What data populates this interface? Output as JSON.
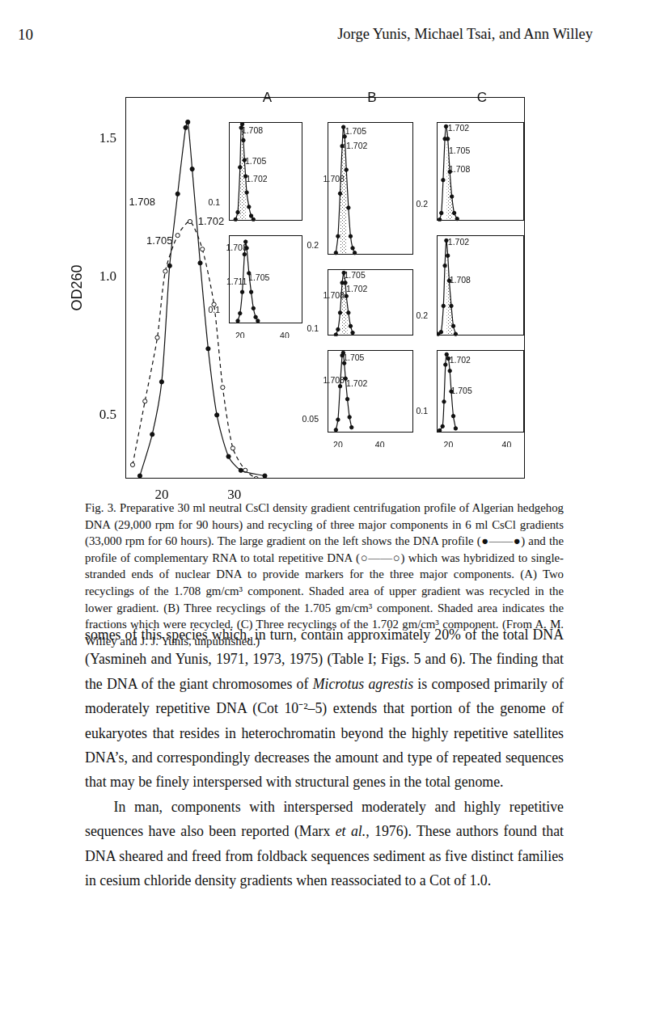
{
  "header": {
    "page": "10",
    "authors": "Jorge Yunis, Michael Tsai, and Ann Willey"
  },
  "chart_data": [
    {
      "type": "line",
      "y_label": "OD260",
      "grid": false,
      "xlim": [
        15,
        70
      ],
      "xticks": [
        20,
        30
      ],
      "ylim": [
        0.27,
        1.65
      ],
      "yticks": [
        0.5,
        {
          "value": 1.0,
          "label": "1.0"
        },
        1.5
      ],
      "series": [
        {
          "color": "#111111",
          "marker": "filled_circle",
          "line_style": "solid",
          "x": [
            17.0,
            18.7,
            20.0,
            21.1,
            22.2,
            23.3,
            23.6,
            24.2,
            25.3,
            26.4,
            27.6,
            29.2,
            30.9,
            34.2
          ],
          "values": [
            0.28,
            0.43,
            0.62,
            1.04,
            1.3,
            1.54,
            1.56,
            1.39,
            1.05,
            0.74,
            0.5,
            0.35,
            0.3,
            0.28
          ]
        },
        {
          "color": "#111111",
          "marker": "open_circle",
          "line_style": "dashed",
          "x": [
            16.0,
            17.7,
            19.4,
            20.5,
            22.2,
            23.9,
            25.6,
            27.2,
            28.4,
            29.8,
            31.5,
            33.0
          ],
          "values": [
            0.32,
            0.55,
            0.78,
            1.02,
            1.15,
            1.2,
            1.1,
            0.9,
            0.6,
            0.38,
            0.3,
            0.27
          ]
        }
      ],
      "annotations": [
        {
          "text": "1.708",
          "x": 17.3,
          "y": 1.27
        },
        {
          "text": "1.705",
          "x": 19.7,
          "y": 1.13
        },
        {
          "text": "1.702",
          "x": 26.8,
          "y": 1.2
        }
      ]
    },
    {
      "type": "line",
      "title": "A",
      "grid": false,
      "tick_labels": "y",
      "xlim": [
        15,
        48
      ],
      "xticks": [
        20,
        40
      ],
      "ylim": [
        0,
        0.55
      ],
      "yticks": [
        0.1
      ],
      "series": [
        {
          "color": "#111111",
          "marker": "filled_circle",
          "line_style": "solid",
          "x": [
            18,
            19,
            20,
            20.5,
            21,
            21.5,
            22,
            22.5,
            23,
            24,
            25,
            26
          ],
          "values": [
            0.01,
            0.05,
            0.3,
            0.52,
            0.54,
            0.45,
            0.34,
            0.25,
            0.16,
            0.08,
            0.03,
            0.01
          ]
        }
      ],
      "shaded_range": [
        19.5,
        22.5
      ],
      "annotations": [
        {
          "text": "1.708",
          "x": 25.5,
          "y": 0.5
        },
        {
          "text": "1.705",
          "x": 27.0,
          "y": 0.33
        },
        {
          "text": "1.702",
          "x": 27.5,
          "y": 0.23
        }
      ]
    },
    {
      "type": "line",
      "grid": false,
      "xlim": [
        15,
        48
      ],
      "xticks": [
        20,
        40
      ],
      "ylim": [
        0,
        0.7
      ],
      "yticks": [
        0.1
      ],
      "series": [
        {
          "color": "#111111",
          "marker": "filled_circle",
          "line_style": "solid",
          "x": [
            19,
            20,
            21,
            22,
            22.5,
            23,
            24,
            25,
            26,
            27,
            28
          ],
          "values": [
            0.02,
            0.08,
            0.25,
            0.55,
            0.65,
            0.6,
            0.4,
            0.25,
            0.12,
            0.05,
            0.02
          ]
        }
      ],
      "annotations": [
        {
          "text": "1.708",
          "x": 18.5,
          "y": 0.6
        },
        {
          "text": "1.711",
          "x": 18.5,
          "y": 0.33
        },
        {
          "text": "1.705",
          "x": 28.5,
          "y": 0.36
        }
      ]
    },
    {
      "type": "line",
      "title": "B",
      "grid": false,
      "tick_labels": "y",
      "xlim": [
        15,
        56
      ],
      "xticks": [
        20,
        40
      ],
      "ylim": [
        0,
        2.8
      ],
      "yticks": [
        0.2
      ],
      "series": [
        {
          "color": "#111111",
          "marker": "filled_circle",
          "line_style": "solid",
          "x": [
            19,
            20,
            21,
            22,
            22.6,
            23.2,
            24,
            25,
            26,
            27,
            28
          ],
          "values": [
            0.05,
            0.4,
            1.3,
            2.3,
            2.7,
            2.5,
            1.8,
            1.0,
            0.4,
            0.15,
            0.05
          ]
        }
      ],
      "shaded_range": [
        21,
        24
      ],
      "annotations": [
        {
          "text": "1.705",
          "x": 28.5,
          "y": 2.6
        },
        {
          "text": "1.702",
          "x": 29.0,
          "y": 2.3
        },
        {
          "text": "1.708",
          "x": 18.0,
          "y": 1.6
        }
      ]
    },
    {
      "type": "line",
      "grid": false,
      "tick_labels": "y",
      "xlim": [
        15,
        56
      ],
      "xticks": [
        20,
        40
      ],
      "ylim": [
        0,
        1.0
      ],
      "yticks": [
        0.1
      ],
      "series": [
        {
          "color": "#111111",
          "marker": "filled_circle",
          "line_style": "solid",
          "x": [
            19,
            20,
            21,
            22,
            22.8,
            23.5,
            24,
            25,
            26,
            27
          ],
          "values": [
            0.02,
            0.1,
            0.35,
            0.8,
            0.95,
            0.8,
            0.6,
            0.35,
            0.15,
            0.05
          ]
        }
      ],
      "shaded_range": [
        21.5,
        24.5
      ],
      "annotations": [
        {
          "text": "1.705",
          "x": 28.0,
          "y": 0.9
        },
        {
          "text": "1.702",
          "x": 29.0,
          "y": 0.7
        },
        {
          "text": "1.708",
          "x": 18.0,
          "y": 0.6
        }
      ]
    },
    {
      "type": "line",
      "grid": false,
      "xlim": [
        15,
        56
      ],
      "xticks": [
        20,
        40
      ],
      "ylim": [
        0,
        0.32
      ],
      "yticks": [
        0.05
      ],
      "series": [
        {
          "color": "#111111",
          "marker": "filled_circle",
          "line_style": "solid",
          "x": [
            19,
            20,
            21,
            22,
            22.5,
            23,
            23.6,
            24.5,
            25.5,
            26.5
          ],
          "values": [
            0.01,
            0.05,
            0.18,
            0.3,
            0.31,
            0.27,
            0.21,
            0.13,
            0.06,
            0.02
          ]
        }
      ],
      "annotations": [
        {
          "text": "1.705",
          "x": 27.5,
          "y": 0.29
        },
        {
          "text": "1.708",
          "x": 18.0,
          "y": 0.2
        },
        {
          "text": "1.702",
          "x": 29.0,
          "y": 0.19
        }
      ]
    },
    {
      "type": "line",
      "title": "C",
      "grid": false,
      "tick_labels": "y",
      "xlim": [
        16,
        46
      ],
      "xticks": [
        20,
        40
      ],
      "ylim": [
        0,
        1.2
      ],
      "yticks": [
        0.2
      ],
      "series": [
        {
          "color": "#111111",
          "marker": "filled_circle",
          "line_style": "solid",
          "x": [
            17,
            17.6,
            18.2,
            18.8,
            19.2,
            19.8,
            20.5,
            21.2,
            22,
            23
          ],
          "values": [
            0.02,
            0.1,
            0.5,
            1.0,
            1.15,
            1.0,
            0.6,
            0.3,
            0.1,
            0.03
          ]
        }
      ],
      "shaded_range": [
        19.5,
        21.5
      ],
      "annotations": [
        {
          "text": "1.702",
          "x": 23.5,
          "y": 1.12
        },
        {
          "text": "1.705",
          "x": 23.8,
          "y": 0.85
        },
        {
          "text": "1.708",
          "x": 23.8,
          "y": 0.62
        }
      ]
    },
    {
      "type": "line",
      "grid": false,
      "tick_labels": "y",
      "xlim": [
        16,
        46
      ],
      "xticks": [
        20,
        40
      ],
      "ylim": [
        0,
        1.0
      ],
      "yticks": [
        0.2
      ],
      "series": [
        {
          "color": "#111111",
          "marker": "filled_circle",
          "line_style": "solid",
          "x": [
            16.5,
            17.5,
            18.3,
            18.8,
            19.3,
            19.8,
            20.3,
            21,
            21.7,
            22.5
          ],
          "values": [
            0.02,
            0.04,
            0.3,
            0.7,
            0.95,
            0.8,
            0.55,
            0.3,
            0.1,
            0.02
          ]
        }
      ],
      "shaded_range": [
        19.5,
        21.5
      ],
      "annotations": [
        {
          "text": "1.702",
          "x": 23.5,
          "y": 0.93
        },
        {
          "text": "1.708",
          "x": 24.0,
          "y": 0.55
        }
      ]
    },
    {
      "type": "line",
      "grid": false,
      "xlim": [
        16,
        46
      ],
      "xticks": [
        20,
        40
      ],
      "ylim": [
        0,
        0.4
      ],
      "yticks": [
        0.1
      ],
      "series": [
        {
          "color": "#111111",
          "marker": "filled_circle",
          "line_style": "solid",
          "x": [
            17,
            18,
            18.5,
            19,
            19.4,
            20,
            20.5,
            21,
            21.7,
            22.5
          ],
          "values": [
            0.01,
            0.03,
            0.15,
            0.33,
            0.38,
            0.36,
            0.3,
            0.2,
            0.08,
            0.02
          ]
        }
      ],
      "annotations": [
        {
          "text": "1.702",
          "x": 24.0,
          "y": 0.35
        },
        {
          "text": "1.705",
          "x": 24.5,
          "y": 0.2
        }
      ]
    }
  ],
  "caption": [
    {
      "text": "Fig. 3. Preparative 30 ml neutral CsCl density gradient centrifugation profile of Algerian hedgehog DNA (29,000 rpm for 90 hours) and recycling of three major components in 6 ml CsCl gradients (33,000 rpm for 60 hours). The large gradient on the left shows the DNA profile (●——●) and the profile of complementary RNA to total repetitive DNA (○——○) which was hybridized to single-stranded ends of nuclear DNA to provide markers for the three major components. (A) Two recyclings of the 1.708 gm/cm³ component. Shaded area of upper gradient was recycled in the lower gradient. (B) Three recyclings of the 1.705 gm/cm³ component. Shaded area indicates the fractions which were recycled. (C) Three recyclings of the 1.702 gm/cm³ component. (From A. M. Willey and J. J. Yunis, unpublished.)"
    }
  ],
  "body": [
    [
      {
        "text": "somes of this species which, in turn, contain approximately 20% of the total DNA (Yasmineh and Yunis, 1971, 1973, 1975) (Table I; Figs. 5 and 6). The finding that the DNA of the giant chromosomes of "
      },
      {
        "text": "Microtus agrestis",
        "italic": true
      },
      {
        "text": " is composed primarily of moderately repetitive DNA (Cot 10⁻²–5) extends that portion of the genome of eukaryotes that resides in heterochromatin beyond the highly repetitive satellites DNA’s, and correspondingly decreases the amount and type of repeated sequences that may be finely interspersed with structural genes in the total genome."
      }
    ],
    [
      {
        "text": "In man, components with interspersed moderately and highly repetitive sequences have also been reported (Marx "
      },
      {
        "text": "et al.",
        "italic": true
      },
      {
        "text": ", 1976). These authors found that DNA sheared and freed from foldback sequences sediment as five distinct families in cesium chloride density gradients when reassociated to a Cot of 1.0."
      }
    ]
  ]
}
